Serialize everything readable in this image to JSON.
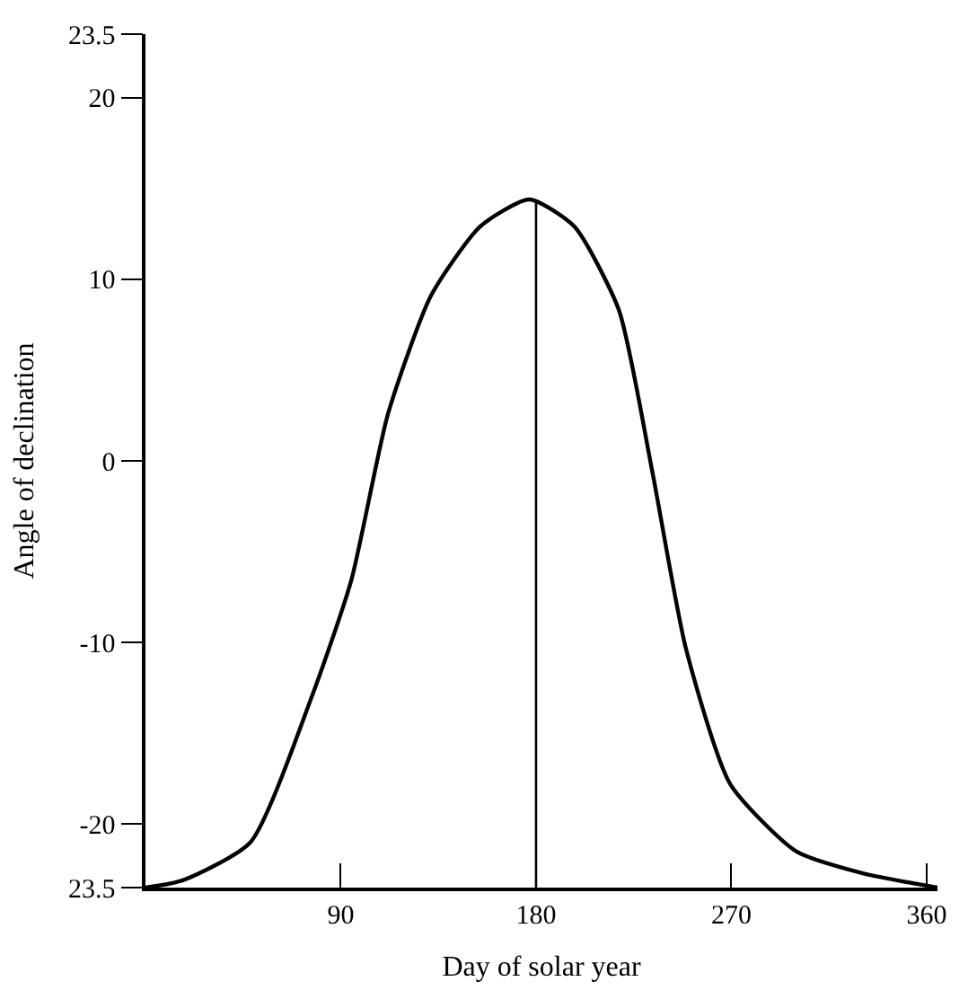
{
  "chart_data": {
    "type": "line",
    "xlabel": "Day of solar year",
    "ylabel": "Angle of declination",
    "x": [
      0,
      17.2,
      48.4,
      76.6,
      94.8,
      111.8,
      131.6,
      154.2,
      176.9,
      197.7,
      218.2,
      233.6,
      249,
      269.5,
      299.9,
      330.3,
      365
    ],
    "series": [
      {
        "color": "#000000",
        "values": [
          -23.5,
          -23.1,
          -21.0,
          -13.0,
          -6.6,
          2.6,
          9.1,
          12.9,
          14.4,
          12.9,
          8.3,
          -0.6,
          -10.3,
          -17.8,
          -21.5,
          -22.7,
          -23.5
        ]
      }
    ],
    "xlim": [
      0,
      365
    ],
    "xticks": [
      90,
      180,
      270,
      360
    ],
    "ylim": [
      -23.5,
      23.5
    ],
    "yticks": [
      {
        "value": -23.5,
        "label": "23.5"
      },
      -20,
      -10,
      0,
      10,
      20,
      23.5
    ],
    "ref_lines": [
      {
        "axis": "x",
        "value": 180,
        "color": "#000000"
      }
    ],
    "marker": "none",
    "line_style": "solid"
  }
}
